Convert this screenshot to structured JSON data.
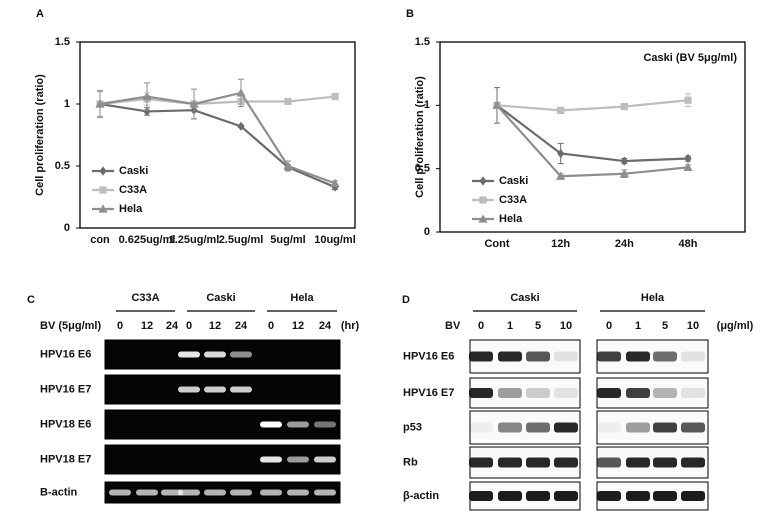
{
  "chart_data": [
    {
      "type": "line",
      "label": "A",
      "ylabel": "Cell proliferation (ratio)",
      "categories": [
        "con",
        "0.625ug/ml",
        "1.25ug/ml",
        "2.5ug/ml",
        "5ug/ml",
        "10ug/ml"
      ],
      "ylim": [
        0,
        1.5
      ],
      "yticks": [
        0,
        0.5,
        1,
        1.5
      ],
      "grid": false,
      "legend": "lower left",
      "series": [
        {
          "name": "Caski",
          "color": "#6b6b6b",
          "marker": "diamond",
          "values": [
            1,
            0.94,
            0.95,
            0.82,
            0.49,
            0.33
          ],
          "errors": [
            0.1,
            0.03,
            0.07,
            0.01,
            0.02,
            0.02
          ]
        },
        {
          "name": "C33A",
          "color": "#bdbdbd",
          "marker": "square",
          "values": [
            1,
            1.04,
            1.0,
            1.02,
            1.02,
            1.06
          ],
          "errors": [
            0.1,
            0.05,
            0.02,
            0.02,
            0.01,
            0.01
          ]
        },
        {
          "name": "Hela",
          "color": "#8e8e8e",
          "marker": "triangle",
          "values": [
            1,
            1.06,
            1.0,
            1.09,
            0.5,
            0.36
          ],
          "errors": [
            0.11,
            0.11,
            0.12,
            0.11,
            0.04,
            0.02
          ]
        }
      ]
    },
    {
      "type": "line",
      "label": "B",
      "ylabel": "Cell proliferation (ratio)",
      "annotation": "Caski (BV 5μg/ml)",
      "categories": [
        "Cont",
        "12h",
        "24h",
        "48h"
      ],
      "ylim": [
        0,
        1.5
      ],
      "yticks": [
        0,
        0.5,
        1,
        1.5
      ],
      "grid": false,
      "legend": "lower left",
      "series": [
        {
          "name": "Caski",
          "color": "#6b6b6b",
          "marker": "diamond",
          "values": [
            1,
            0.62,
            0.56,
            0.58
          ],
          "errors": [
            0.14,
            0.08,
            0.02,
            0.02
          ]
        },
        {
          "name": "C33A",
          "color": "#bdbdbd",
          "marker": "square",
          "values": [
            1,
            0.96,
            0.99,
            1.04
          ],
          "errors": [
            0.02,
            0.02,
            0.02,
            0.05
          ]
        },
        {
          "name": "Hela",
          "color": "#8e8e8e",
          "marker": "triangle",
          "values": [
            1,
            0.44,
            0.46,
            0.51
          ],
          "errors": [
            0.02,
            0.02,
            0.03,
            0.02
          ]
        }
      ]
    }
  ],
  "gels": [
    {
      "label": "C",
      "style": "gel",
      "groups": [
        "C33A",
        "Caski",
        "Hela"
      ],
      "treatment": "BV (5μg/ml)",
      "lanes": [
        "0",
        "12",
        "24",
        "0",
        "12",
        "24",
        "0",
        "12",
        "24"
      ],
      "unit": "(hr)",
      "rows": [
        {
          "name": "HPV16 E6",
          "intensity": [
            0,
            0,
            0,
            0.9,
            0.85,
            0.55,
            0,
            0,
            0
          ]
        },
        {
          "name": "HPV16 E7",
          "intensity": [
            0,
            0,
            0,
            0.8,
            0.8,
            0.8,
            0,
            0,
            0
          ]
        },
        {
          "name": "HPV18 E6",
          "intensity": [
            0,
            0,
            0,
            0,
            0,
            0,
            1,
            0.6,
            0.45
          ]
        },
        {
          "name": "HPV18 E7",
          "intensity": [
            0,
            0,
            0,
            0,
            0,
            0,
            0.9,
            0.6,
            0.8
          ]
        },
        {
          "name": "B-actin",
          "intensity": [
            0.7,
            0.7,
            0.7,
            0.7,
            0.7,
            0.7,
            0.7,
            0.7,
            0.7
          ]
        }
      ]
    },
    {
      "label": "D",
      "style": "blot",
      "groups": [
        "Caski",
        "Hela"
      ],
      "treatment": "BV",
      "lanes": [
        "0",
        "1",
        "5",
        "10",
        "0",
        "1",
        "5",
        "10"
      ],
      "unit": "(μg/ml)",
      "rows": [
        {
          "name": "HPV16 E6",
          "intensity": [
            0.9,
            0.9,
            0.7,
            0.1,
            0.8,
            0.9,
            0.6,
            0.1
          ]
        },
        {
          "name": "HPV16 E7",
          "intensity": [
            0.9,
            0.4,
            0.2,
            0.1,
            0.9,
            0.8,
            0.3,
            0.1
          ]
        },
        {
          "name": "p53",
          "intensity": [
            0.05,
            0.5,
            0.6,
            0.9,
            0.05,
            0.4,
            0.8,
            0.7
          ]
        },
        {
          "name": "Rb",
          "intensity": [
            0.9,
            0.9,
            0.9,
            0.9,
            0.7,
            0.9,
            0.9,
            0.9
          ]
        },
        {
          "name": "β-actin",
          "intensity": [
            0.95,
            0.95,
            0.95,
            0.95,
            0.95,
            0.95,
            0.95,
            0.95
          ]
        }
      ]
    }
  ]
}
